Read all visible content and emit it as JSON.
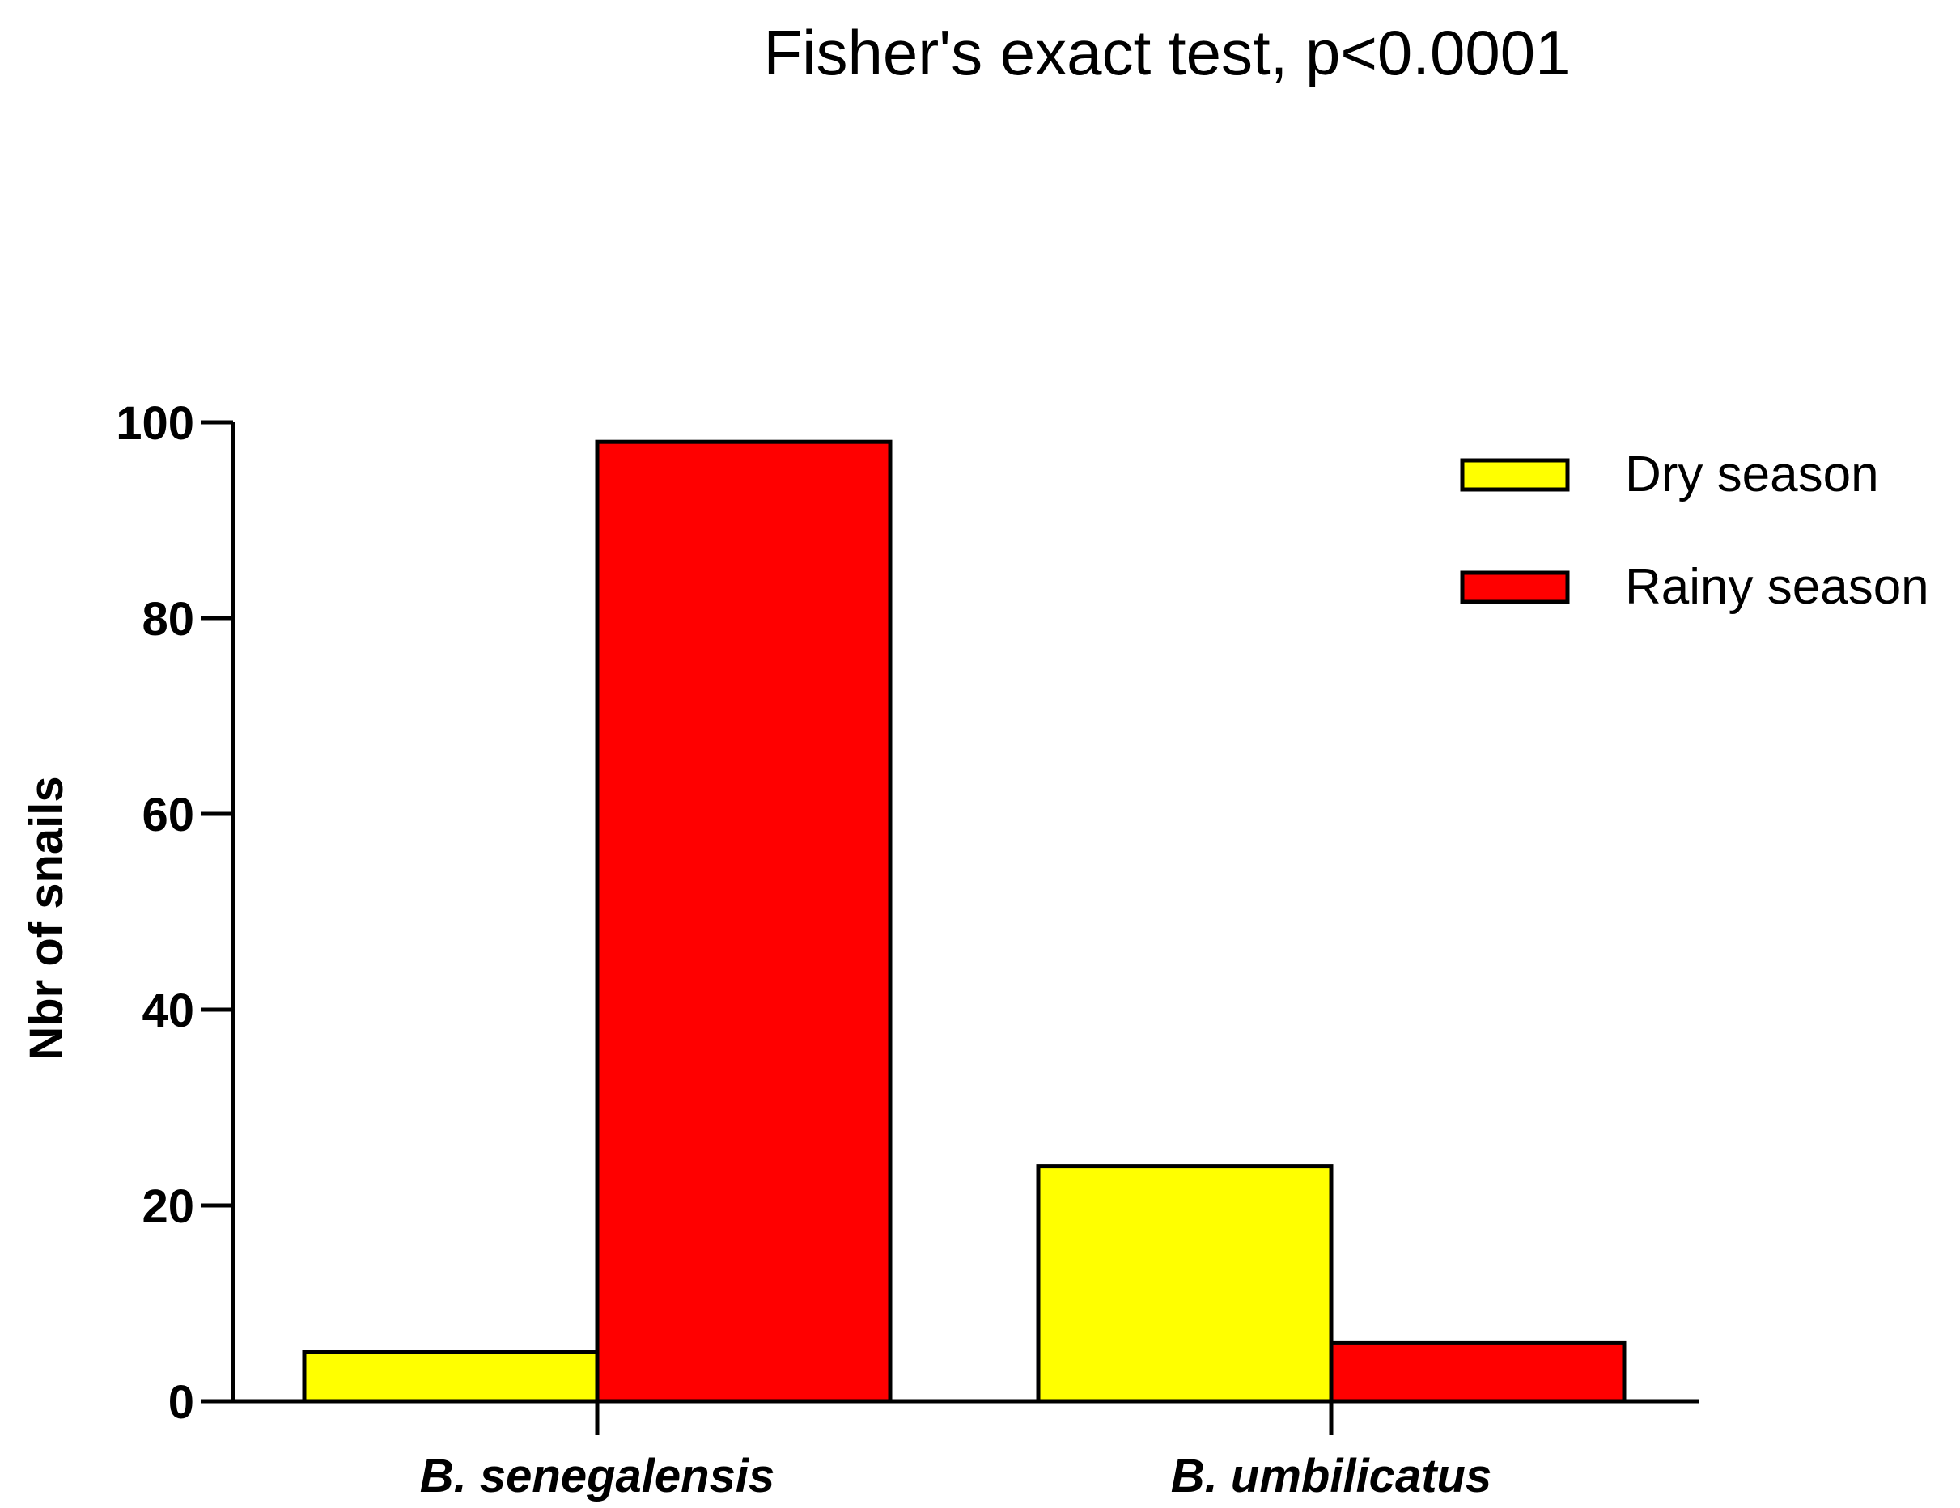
{
  "chart_data": {
    "type": "bar",
    "title": "Fisher's exact test, p<0.0001",
    "xlabel": "",
    "ylabel": "Nbr of snails",
    "ylim": [
      0,
      100
    ],
    "yticks": [
      "0",
      "20",
      "40",
      "60",
      "80",
      "100"
    ],
    "categories": [
      "B. senegalensis",
      "B. umbilicatus"
    ],
    "series": [
      {
        "name": "Dry season",
        "color": "#ffff00",
        "values": [
          5,
          24
        ]
      },
      {
        "name": "Rainy season",
        "color": "#ff0000",
        "values": [
          98,
          6
        ]
      }
    ],
    "legend_position": "top-right",
    "grid": false
  }
}
